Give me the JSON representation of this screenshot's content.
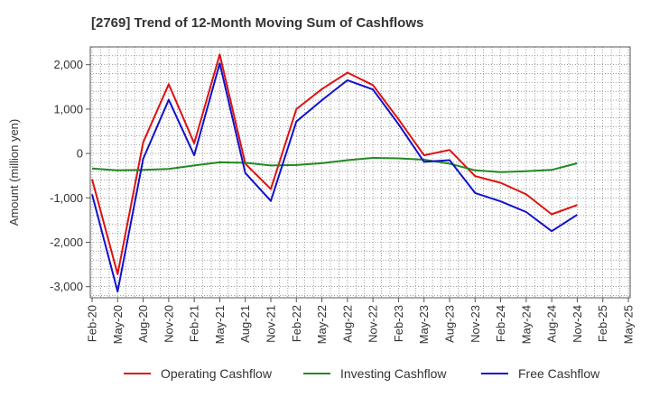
{
  "chart_data": {
    "type": "line",
    "title": "[2769]  Trend of 12-Month Moving Sum of Cashflows",
    "ylabel": "Amount (million yen)",
    "xlabel": "",
    "ylim": [
      -3250,
      2400
    ],
    "yticks": [
      2000,
      1000,
      0,
      -1000,
      -2000,
      -3000
    ],
    "ytick_labels": [
      "2,000",
      "1,000",
      "0",
      "-1,000",
      "-2,000",
      "-3,000"
    ],
    "x_tick_labels": [
      "Feb-20",
      "May-20",
      "Aug-20",
      "Nov-20",
      "Feb-21",
      "May-21",
      "Aug-21",
      "Nov-21",
      "Feb-22",
      "May-22",
      "Aug-22",
      "Nov-22",
      "Feb-23",
      "May-23",
      "Aug-23",
      "Nov-23",
      "Feb-24",
      "May-24",
      "Aug-24",
      "Nov-24",
      "Feb-25",
      "May-25"
    ],
    "grid": true,
    "legend_position": "bottom",
    "series": [
      {
        "name": "Operating Cashflow",
        "color": "#dd1111",
        "values": [
          -580,
          -2720,
          250,
          1560,
          230,
          2230,
          -230,
          -800,
          1000,
          1450,
          1820,
          1540,
          770,
          -40,
          80,
          -510,
          -660,
          -920,
          -1370,
          -1160
        ]
      },
      {
        "name": "Investing Cashflow",
        "color": "#228822",
        "values": [
          -340,
          -380,
          -370,
          -350,
          -270,
          -200,
          -210,
          -270,
          -260,
          -220,
          -150,
          -100,
          -110,
          -140,
          -230,
          -380,
          -420,
          -400,
          -370,
          -220
        ]
      },
      {
        "name": "Free Cashflow",
        "color": "#1111cc",
        "values": [
          -920,
          -3110,
          -120,
          1210,
          -40,
          2030,
          -440,
          -1070,
          720,
          1200,
          1650,
          1440,
          660,
          -190,
          -150,
          -890,
          -1080,
          -1320,
          -1750,
          -1380
        ]
      }
    ]
  }
}
